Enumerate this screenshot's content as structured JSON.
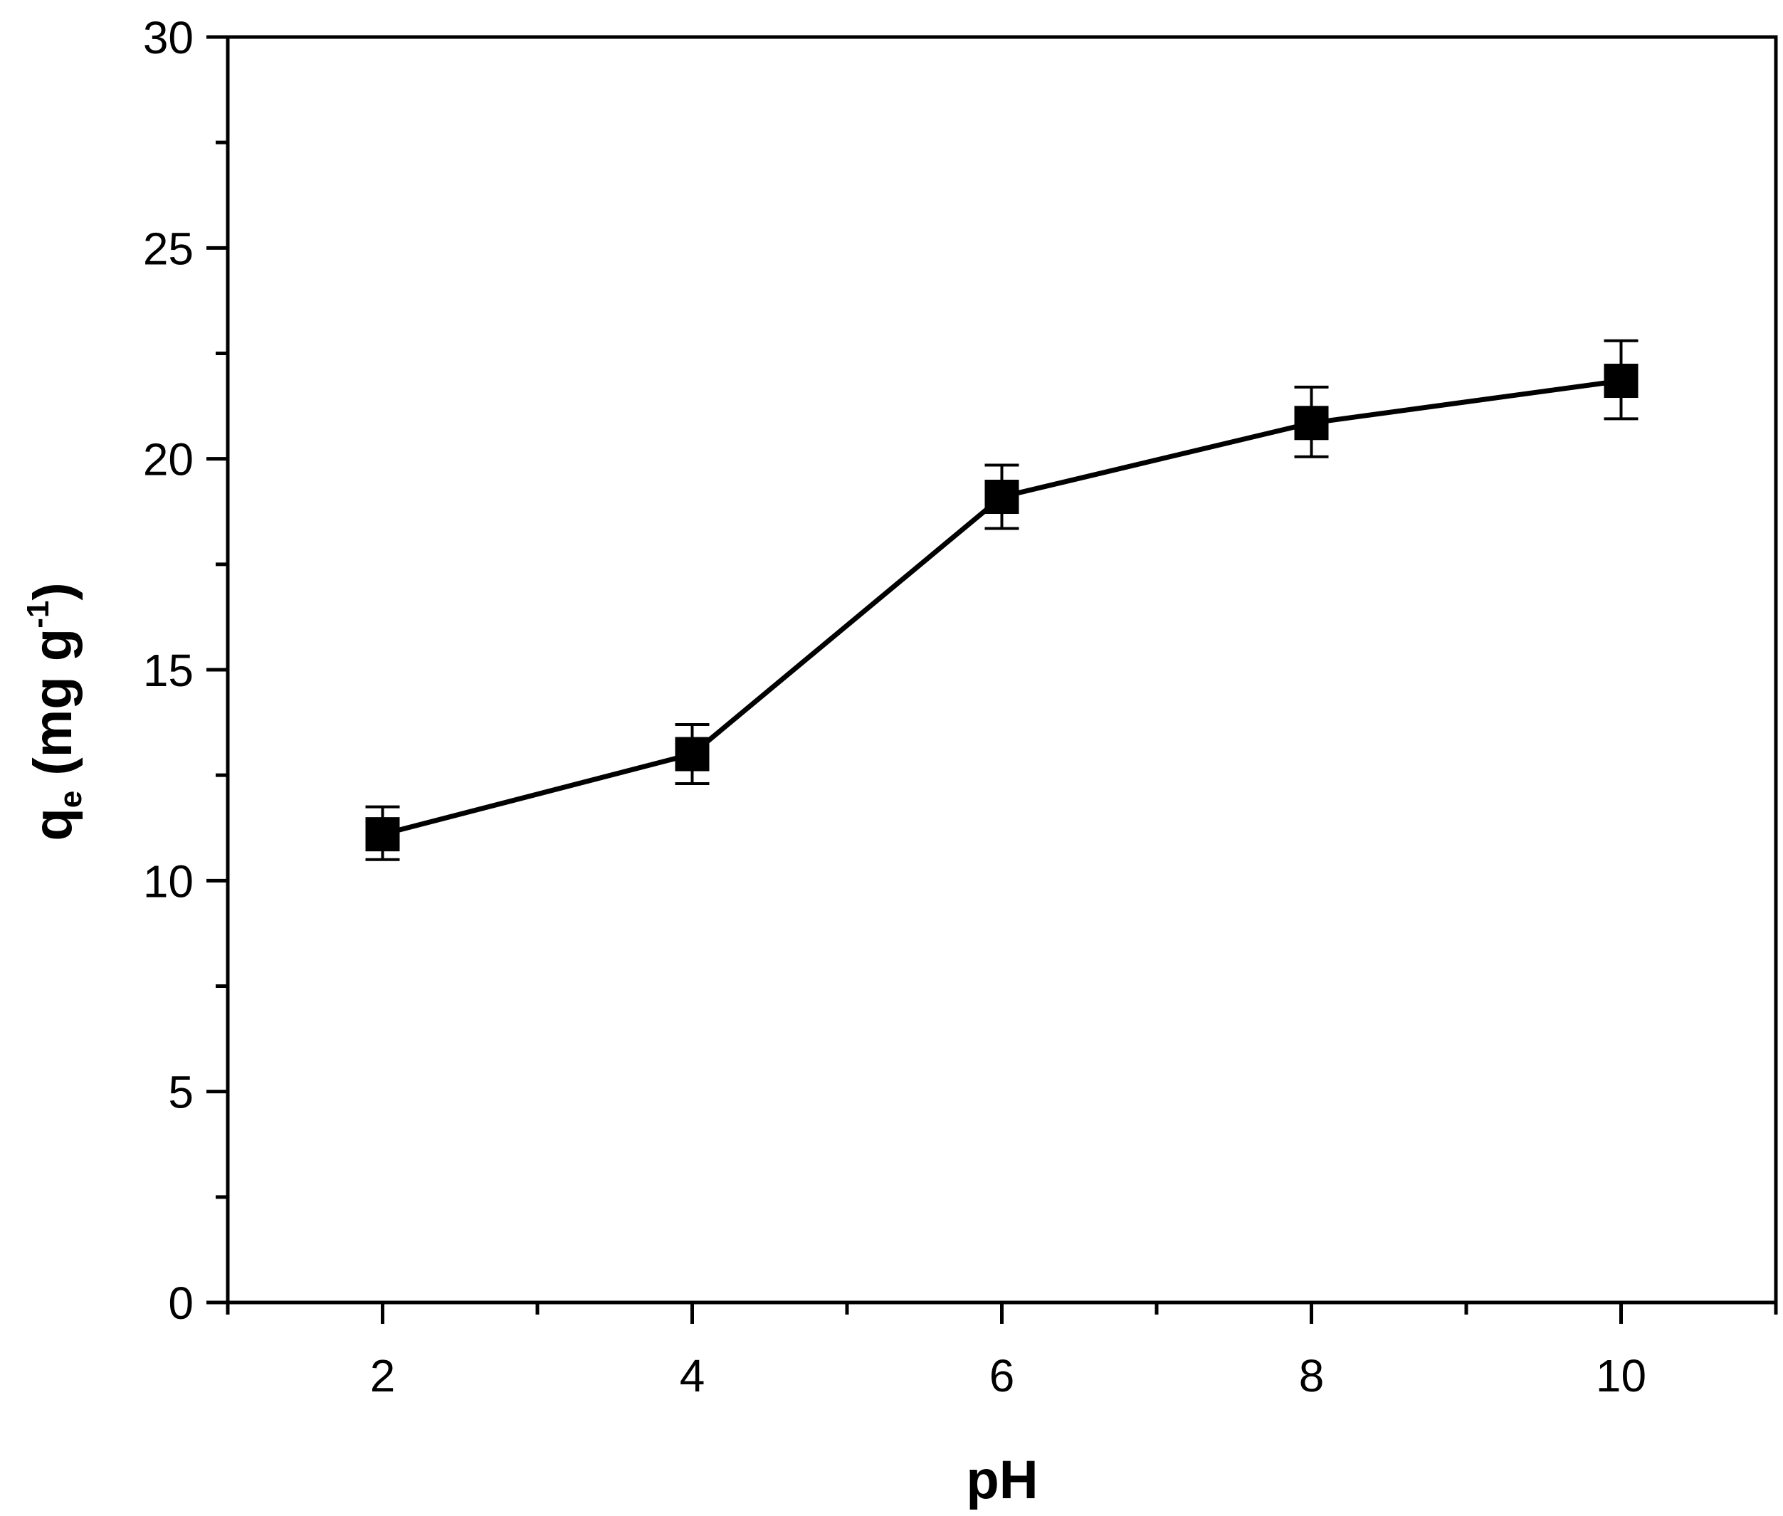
{
  "chart_data": {
    "type": "line",
    "title": "",
    "xlabel": "pH",
    "ylabel": {
      "symbol": "q",
      "subscript": "e",
      "unit_open": " (mg g",
      "superscript": "-1",
      "unit_close": ")"
    },
    "xlim": [
      1,
      11
    ],
    "ylim": [
      0,
      30
    ],
    "x_major_ticks": [
      2,
      4,
      6,
      8,
      10
    ],
    "x_minor_ticks": [
      1,
      3,
      5,
      7,
      9,
      11
    ],
    "y_major_ticks": [
      0,
      5,
      10,
      15,
      20,
      25,
      30
    ],
    "y_minor_ticks": [
      2.5,
      7.5,
      12.5,
      17.5,
      22.5,
      27.5
    ],
    "grid": false,
    "legend": "none",
    "colors": {
      "line": "#000000",
      "marker": "#000000",
      "axis": "#000000",
      "background": "#ffffff"
    },
    "marker": "square",
    "series": [
      {
        "name": "qe",
        "x": [
          2,
          4,
          6,
          8,
          10
        ],
        "y": [
          11.1,
          13.0,
          19.1,
          20.85,
          21.85
        ],
        "yerr_low": [
          0.6,
          0.7,
          0.75,
          0.8,
          0.9
        ],
        "yerr_high": [
          0.65,
          0.7,
          0.75,
          0.85,
          0.95
        ]
      }
    ]
  }
}
